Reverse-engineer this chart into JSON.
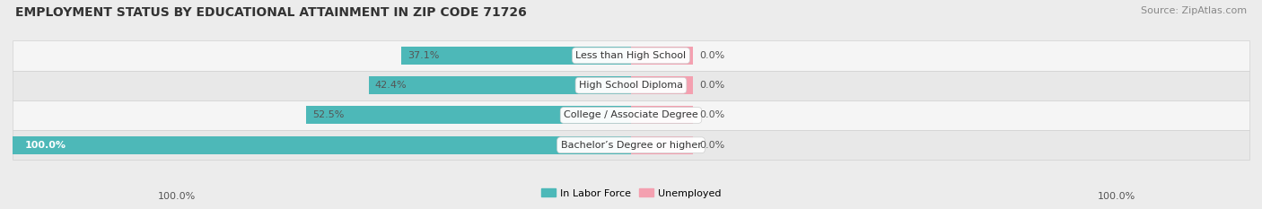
{
  "title": "EMPLOYMENT STATUS BY EDUCATIONAL ATTAINMENT IN ZIP CODE 71726",
  "source": "Source: ZipAtlas.com",
  "categories": [
    "Less than High School",
    "High School Diploma",
    "College / Associate Degree",
    "Bachelor’s Degree or higher"
  ],
  "labor_force_values": [
    37.1,
    42.4,
    52.5,
    100.0
  ],
  "unemployed_values": [
    0.0,
    0.0,
    0.0,
    0.0
  ],
  "labor_force_color": "#4db8b8",
  "unemployed_color": "#f4a0b0",
  "label_color": "#555555",
  "background_color": "#ececec",
  "row_light": "#f5f5f5",
  "row_dark": "#e8e8e8",
  "title_fontsize": 10,
  "source_fontsize": 8,
  "label_fontsize": 8,
  "cat_fontsize": 8,
  "legend_fontsize": 8,
  "bar_height": 0.6,
  "xlim_left": -100,
  "xlim_right": 100,
  "x_left_label": "100.0%",
  "x_right_label": "100.0%",
  "unemployed_bar_width": 10,
  "figsize": [
    14.06,
    2.33
  ],
  "dpi": 100
}
